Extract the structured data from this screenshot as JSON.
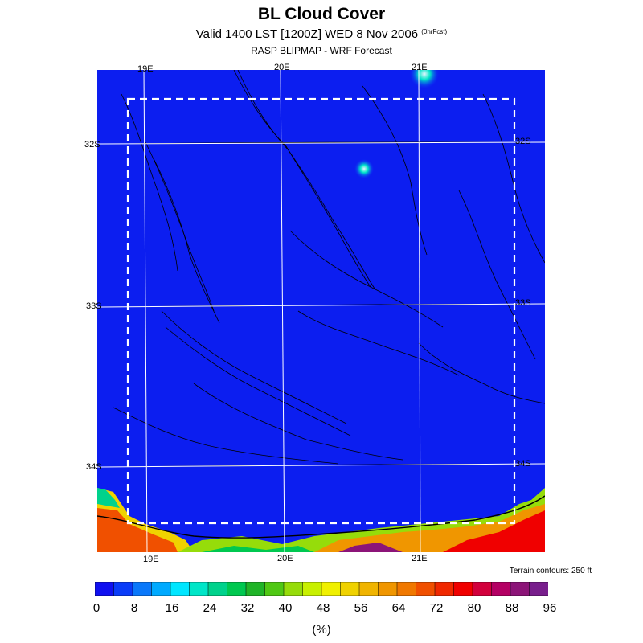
{
  "header": {
    "title": "BL Cloud Cover",
    "subtitle": "Valid 1400 LST [1200Z] WED 8 Nov 2006",
    "subtitle_small": "(0hrFcst)",
    "source": "RASP BLIPMAP - WRF Forecast"
  },
  "map": {
    "top_lon_labels": [
      "19E",
      "20E",
      "21E"
    ],
    "bottom_lon_labels": [
      "19E",
      "20E",
      "21E"
    ],
    "left_lat_labels": [
      "32S",
      "33S",
      "34S"
    ],
    "right_lat_labels": [
      "32S",
      "33S",
      "34S"
    ],
    "terrain_note": "Terrain contours: 250 ft",
    "colors": {
      "background_field": "#0c1ef0",
      "grid_line": "#ffffff",
      "domain_box": "#ffffff"
    }
  },
  "colorbar": {
    "tick_labels": [
      "0",
      "8",
      "16",
      "24",
      "32",
      "40",
      "48",
      "56",
      "64",
      "72",
      "80",
      "88",
      "96"
    ],
    "units": "(%)",
    "colors": [
      "#1010f0",
      "#0a3cf8",
      "#0a78fa",
      "#00aaff",
      "#00e6ff",
      "#00e6c8",
      "#00d28c",
      "#00c850",
      "#20b428",
      "#50c814",
      "#96dc0a",
      "#c8f000",
      "#f0f000",
      "#f0d200",
      "#f0b400",
      "#f09600",
      "#f07800",
      "#f05000",
      "#f02800",
      "#f00000",
      "#d2003c",
      "#b40064",
      "#8c1478",
      "#781e8c"
    ]
  }
}
